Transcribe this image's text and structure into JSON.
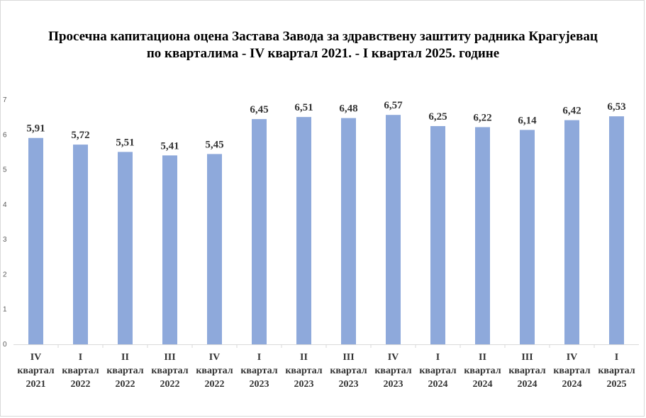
{
  "chart_data": {
    "type": "bar",
    "title_lines": [
      "Просечна капитациона оцена Застава Завода за здравствену заштиту  радника Крагујевац",
      "по кварталима  - IV квартал  2021. - I квартал  2025. године"
    ],
    "categories": [
      [
        "IV",
        "квартал",
        "2021"
      ],
      [
        "I",
        "квартал",
        "2022"
      ],
      [
        "II",
        "квартал",
        "2022"
      ],
      [
        "III",
        "квартал",
        "2022"
      ],
      [
        "IV",
        "квартал",
        "2022"
      ],
      [
        "I",
        "квартал",
        "2023"
      ],
      [
        "II",
        "квартал",
        "2023"
      ],
      [
        "III",
        "квартал",
        "2023"
      ],
      [
        "IV",
        "квартал",
        "2023"
      ],
      [
        "I",
        "квартал",
        "2024"
      ],
      [
        "II",
        "квартал",
        "2024"
      ],
      [
        "III",
        "квартал",
        "2024"
      ],
      [
        "IV",
        "квартал",
        "2024"
      ],
      [
        "I",
        "квартал",
        "2025"
      ]
    ],
    "values": [
      5.91,
      5.72,
      5.51,
      5.41,
      5.45,
      6.45,
      6.51,
      6.48,
      6.57,
      6.25,
      6.22,
      6.14,
      6.42,
      6.53
    ],
    "data_labels": [
      "5,91",
      "5,72",
      "5,51",
      "5,41",
      "5,45",
      "6,45",
      "6,51",
      "6,48",
      "6,57",
      "6,25",
      "6,22",
      "6,14",
      "6,42",
      "6,53"
    ],
    "y_ticks": [
      "0",
      "1",
      "2",
      "3",
      "4",
      "5",
      "6",
      "7"
    ],
    "ylim": [
      0,
      7
    ],
    "grid": false,
    "legend": "none",
    "bar_color": "#8EA9DB"
  }
}
